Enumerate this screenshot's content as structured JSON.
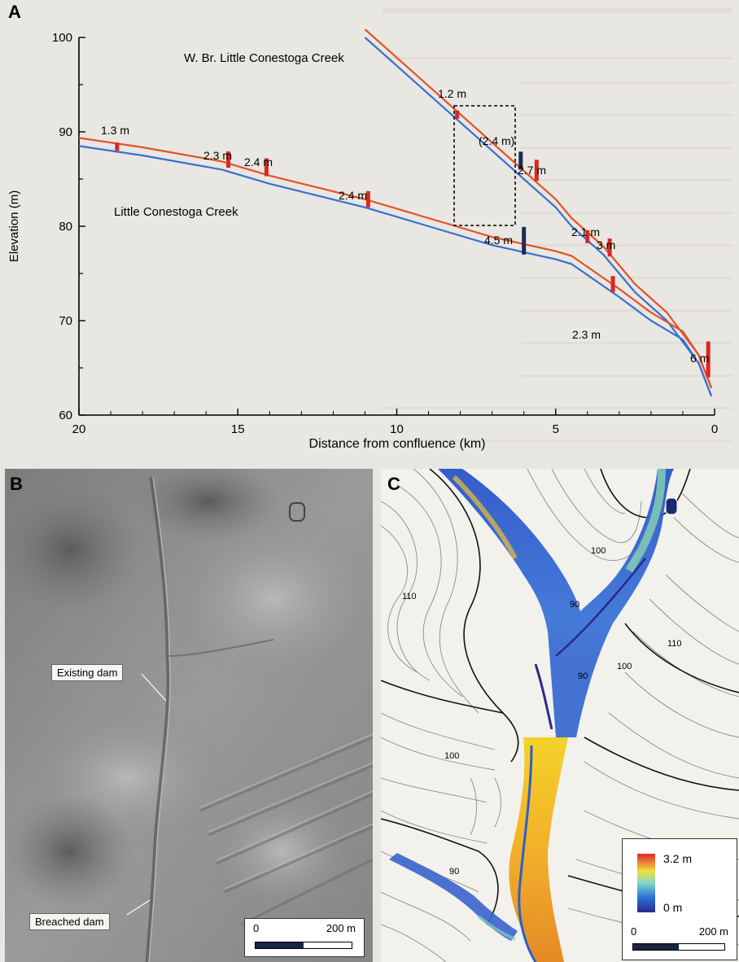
{
  "panel_a": {
    "letter": "A",
    "xlabel": "Distance from confluence (km)",
    "ylabel": "Elevation (m)",
    "x_ticks": [
      "20",
      "15",
      "10",
      "5",
      "0"
    ],
    "y_ticks": [
      "100",
      "90",
      "80",
      "70",
      "60"
    ],
    "creek_labels": [
      "W. Br. Little Conestoga Creek",
      "Little Conestoga Creek"
    ],
    "dam_labels": [
      "1.3 m",
      "2.3 m",
      "2.4 m",
      "2.4 m",
      "4.5 m",
      "2.3 m",
      "6 m",
      "1.2 m",
      "(2.4 m)",
      "2.7 m",
      "2.1 m",
      "3 m"
    ],
    "colors": {
      "water_surface": "#e2522a",
      "bed": "#3a6fd0",
      "breached_dam": "#1e2a55",
      "dam": "#d82a20"
    }
  },
  "panel_b": {
    "letter": "B",
    "callouts": [
      "Existing dam",
      "Breached dam"
    ],
    "scale_labels": [
      "0",
      "200 m"
    ]
  },
  "panel_c": {
    "letter": "C",
    "contour_labels": [
      "100",
      "110",
      "90",
      "90",
      "100",
      "110",
      "100",
      "90"
    ],
    "legend_max": "3.2 m",
    "legend_min": "0 m",
    "scale_labels": [
      "0",
      "200 m"
    ]
  },
  "chart_data": {
    "type": "line",
    "title": "",
    "xlabel": "Distance from confluence (km)",
    "ylabel": "Elevation (m)",
    "xlim": [
      20,
      0
    ],
    "ylim": [
      60,
      100
    ],
    "grid": false,
    "series": [
      {
        "name": "W. Br. Little Conestoga Creek",
        "x": [
          11,
          9.5,
          8.2,
          7,
          6,
          5.5,
          5,
          4.5,
          3.5,
          3,
          2.5,
          1.5,
          0.5,
          0.1
        ],
        "y": [
          100,
          95.5,
          91.6,
          88,
          85,
          83.5,
          82,
          80,
          77,
          75,
          73,
          70,
          65.5,
          62
        ]
      },
      {
        "name": "Little Conestoga Creek",
        "x": [
          20,
          18,
          15.5,
          14,
          11,
          9,
          7,
          5,
          4.5,
          3,
          2,
          1,
          0.5,
          0.1
        ],
        "y": [
          88.5,
          87.5,
          86,
          84.5,
          82,
          80,
          78,
          76.5,
          76,
          72.5,
          70,
          68,
          65.5,
          62
        ]
      }
    ],
    "annotations": [
      "1.3 m",
      "2.3 m",
      "2.4 m",
      "2.4 m",
      "4.5 m",
      "2.3 m",
      "6 m",
      "1.2 m",
      "(2.4 m)",
      "2.7 m",
      "2.1 m",
      "3 m"
    ]
  }
}
